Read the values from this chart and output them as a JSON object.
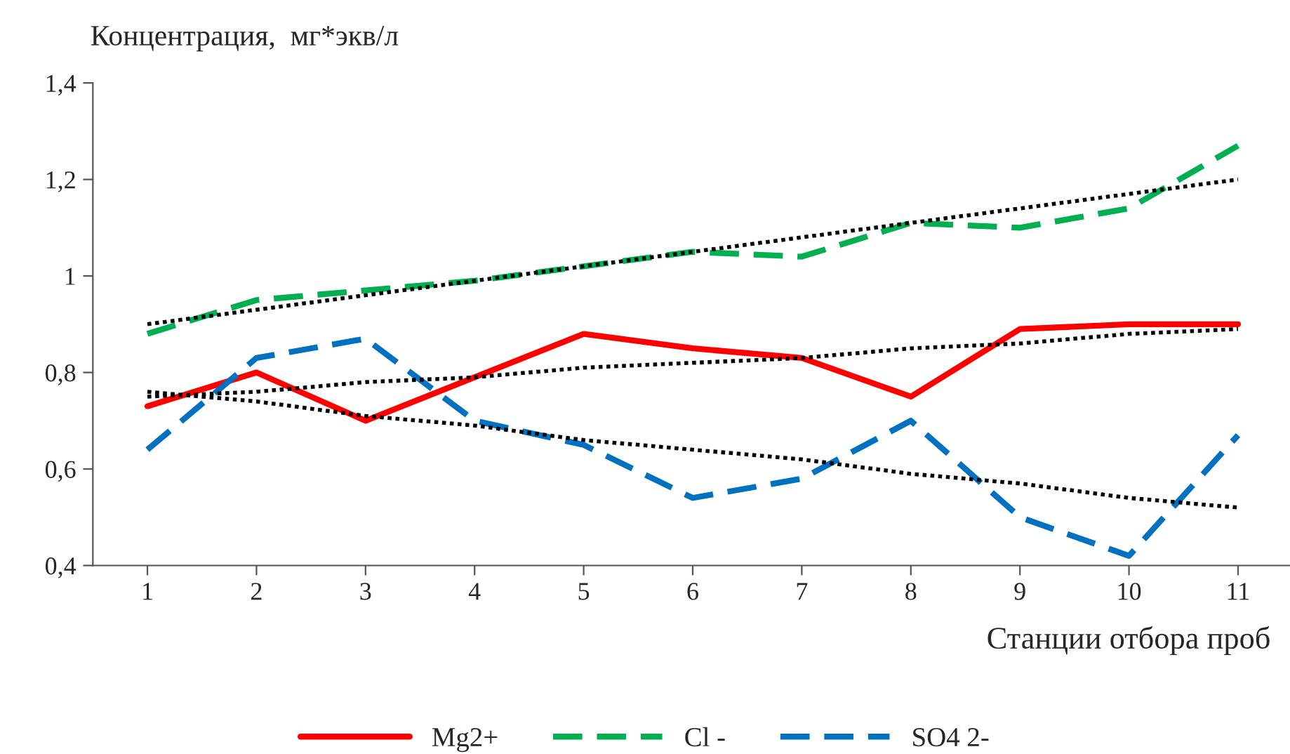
{
  "chart_data": {
    "type": "line",
    "xlabel": "Станции отбора проб",
    "ylabel": "Концентрация,  мг*экв/л",
    "x": [
      1,
      2,
      3,
      4,
      5,
      6,
      7,
      8,
      9,
      10,
      11
    ],
    "xlim": [
      0.5,
      11.5
    ],
    "xticks": [
      1,
      2,
      3,
      4,
      5,
      6,
      7,
      8,
      9,
      10,
      11
    ],
    "ylim": [
      0.4,
      1.4
    ],
    "yticks": [
      {
        "value": 0.4,
        "label": "0,4"
      },
      {
        "value": 0.6,
        "label": "0,6"
      },
      {
        "value": 0.8,
        "label": "0,8"
      },
      {
        "value": 1,
        "label": "1"
      },
      {
        "value": 1.2,
        "label": "1,2"
      },
      {
        "value": 1.4,
        "label": "1,4"
      }
    ],
    "grid": false,
    "legend": "bottom",
    "marker": "none",
    "series": [
      {
        "name": "Mg2+",
        "color": "#ff0000",
        "line_style": "solid",
        "values": [
          0.73,
          0.8,
          0.7,
          0.79,
          0.88,
          0.85,
          0.83,
          0.75,
          0.89,
          0.9,
          0.9
        ]
      },
      {
        "name": "Cl -",
        "color": "#00b050",
        "line_style": "dashed",
        "values": [
          0.88,
          0.95,
          0.97,
          0.99,
          1.02,
          1.05,
          1.04,
          1.11,
          1.1,
          1.14,
          1.27
        ]
      },
      {
        "name": "SO4 2-",
        "color": "#0070c0",
        "line_style": "dashed",
        "values": [
          0.64,
          0.83,
          0.87,
          0.7,
          0.65,
          0.54,
          0.58,
          0.7,
          0.5,
          0.42,
          0.67
        ]
      },
      {
        "color": "#000000",
        "line_style": "dotted",
        "values": [
          0.75,
          0.76,
          0.78,
          0.79,
          0.81,
          0.82,
          0.83,
          0.85,
          0.86,
          0.88,
          0.89
        ]
      },
      {
        "color": "#000000",
        "line_style": "dotted",
        "values": [
          0.9,
          0.93,
          0.96,
          0.99,
          1.02,
          1.05,
          1.08,
          1.11,
          1.14,
          1.17,
          1.2
        ]
      },
      {
        "color": "#000000",
        "line_style": "dotted",
        "values": [
          0.76,
          0.74,
          0.71,
          0.69,
          0.66,
          0.64,
          0.62,
          0.59,
          0.57,
          0.54,
          0.52
        ]
      }
    ]
  }
}
